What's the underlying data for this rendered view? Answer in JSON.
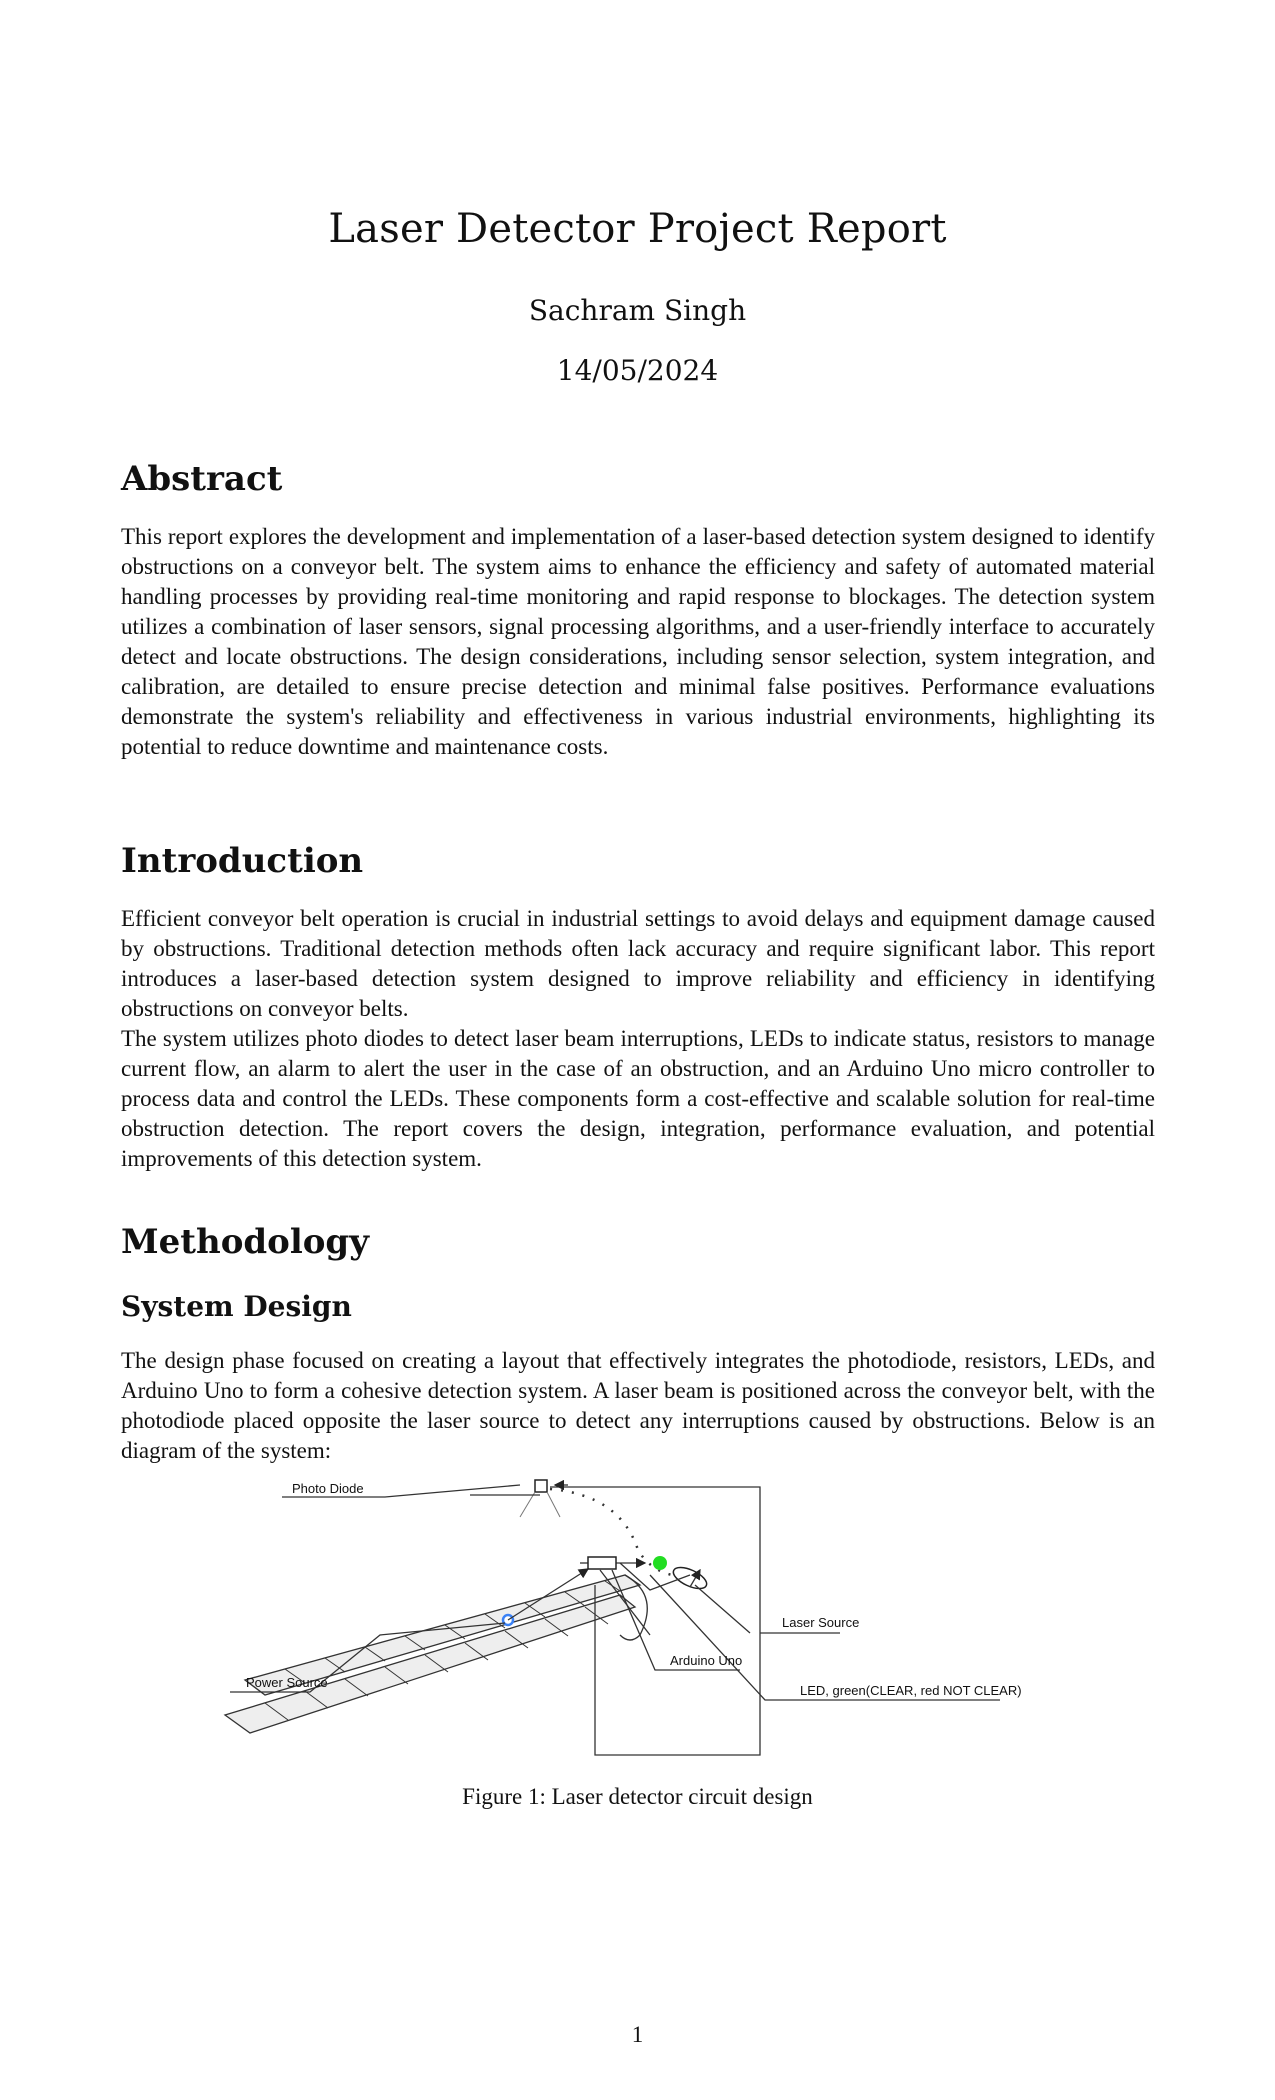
{
  "document": {
    "title": "Laser Detector Project Report",
    "author": "Sachram Singh",
    "date": "14/05/2024",
    "page_number": "1"
  },
  "sections": {
    "abstract": {
      "heading": "Abstract",
      "text": "This report explores the development and implementation of a laser-based detection system designed to identify obstructions on a conveyor belt. The system aims to enhance the efficiency and safety of automated material handling processes by providing real-time monitoring and rapid response to blockages. The detection system utilizes a combination of laser sensors, signal processing algorithms, and a user-friendly interface to accurately detect and locate obstructions. The design considerations, including sensor selection, system integration, and calibration, are detailed to ensure precise detection and minimal false positives. Performance evaluations demonstrate the system's reliability and effectiveness in various industrial environments, highlighting its potential to reduce downtime and maintenance costs."
    },
    "introduction": {
      "heading": "Introduction",
      "paragraph1": "Efficient conveyor belt operation is crucial in industrial settings to avoid delays and equipment damage caused by obstructions. Traditional detection methods often lack accuracy and require significant labor. This report introduces a laser-based detection system designed to improve reliability and efficiency in identifying obstructions on conveyor belts.",
      "paragraph2": "The system utilizes photo diodes to detect laser beam interruptions, LEDs to indicate status, resistors to manage current flow, an alarm to alert the user in the case of an obstruction, and an Arduino Uno micro controller to process data and control the LEDs. These components form a cost-effective and scalable solution for real-time obstruction detection. The report covers the design, integration, performance evaluation, and potential improvements of this detection system."
    },
    "methodology": {
      "heading": "Methodology",
      "subsection_heading": "System Design",
      "text": "The design phase focused on creating a layout that effectively integrates the photodiode, resistors, LEDs, and Arduino Uno to form a cohesive detection system. A laser beam is positioned across the conveyor belt, with the photodiode placed opposite the laser source to detect any interruptions caused by obstructions. Below is an diagram of the system:"
    }
  },
  "figure": {
    "caption": "Figure 1: Laser detector circuit design",
    "labels": {
      "photo_diode": "Photo Diode",
      "laser_source": "Laser Source",
      "arduino": "Arduino Uno",
      "power_source": "Power Source",
      "led": "LED, green(CLEAR, red NOT CLEAR)"
    },
    "colors": {
      "led": "#22dd22",
      "power": "#3b82f6",
      "belt_fill": "#eeeeee",
      "line": "#333333"
    }
  }
}
